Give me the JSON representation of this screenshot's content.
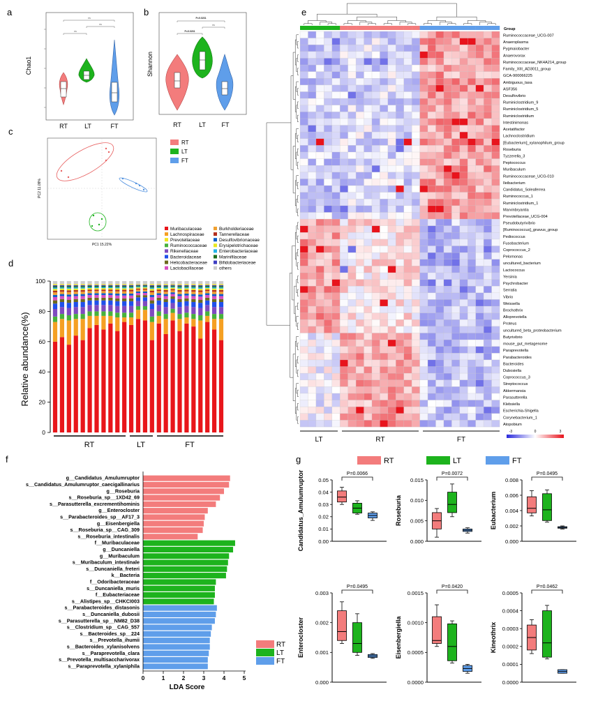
{
  "colors": {
    "RT": "#f37c7c",
    "LT": "#1db31d",
    "FT": "#5f9eea"
  },
  "panels": {
    "a": "a",
    "b": "b",
    "c": "c",
    "d": "d",
    "e": "e",
    "f": "f",
    "g": "g"
  },
  "group_names": [
    "RT",
    "LT",
    "FT"
  ],
  "panel_a": {
    "ylabel": "Chao1",
    "pvals": [
      "ns",
      "ns",
      "ns"
    ]
  },
  "panel_b": {
    "ylabel": "Shannon",
    "pvals": [
      "P=0.0231",
      "ns",
      "P=0.0231"
    ]
  },
  "panel_c": {
    "xlabel": "PC1 15.22%",
    "ylabel": "PC2 11.09%"
  },
  "legend_families": [
    "Muribaculaceae",
    "Burkholderiaceae",
    "Lachnospiraceae",
    "Tannerellaceae",
    "Prevotellaceae",
    "Desulfovibrionaceae",
    "Ruminococcaceae",
    "Erysipelotrichaceae",
    "Rikenellaceae",
    "Enterobacteriaceae",
    "Bacteroidaceae",
    "Marinifilaceae",
    "Helicobacteraceae",
    "Bifidobacteriaceae",
    "Lactobacillaceae",
    "others"
  ],
  "legend_colors": [
    "#e8161b",
    "#f0a030",
    "#f5a023",
    "#b32e1e",
    "#f3e41f",
    "#0c5dc8",
    "#47b23c",
    "#e8e820",
    "#7f4bbf",
    "#23b3e8",
    "#2050ea",
    "#1d6e1d",
    "#6d6a1e",
    "#3d3dc2",
    "#d84ec2",
    "#cccccc"
  ],
  "chart_data": [
    {
      "type": "bar",
      "panel": "d",
      "ylabel": "Relative abundance(%)",
      "ylim": [
        0,
        100
      ],
      "yticks": [
        "0",
        "20",
        "40",
        "60",
        "80",
        "100"
      ],
      "group_labels": [
        "RT",
        "LT",
        "FT"
      ],
      "muribaculaceae": [
        60,
        63,
        58,
        64,
        61,
        69,
        71,
        68,
        72,
        67,
        73,
        71,
        75,
        74,
        61,
        72,
        65,
        74,
        67,
        72,
        70,
        62,
        73,
        68,
        61
      ],
      "lachnospiraceae": [
        13,
        12,
        16,
        11,
        14,
        8,
        6,
        9,
        5,
        9,
        3,
        5,
        6,
        7,
        12,
        5,
        10,
        5,
        8,
        4,
        5,
        12,
        4,
        7,
        14
      ]
    },
    {
      "type": "bar",
      "panel": "f",
      "xlabel": "LDA Score",
      "xlim": [
        0,
        5
      ],
      "xticks": [
        "0",
        "1",
        "2",
        "3",
        "4",
        "5"
      ],
      "legend": [
        "RT",
        "LT",
        "FT"
      ],
      "labels": [
        "g__Candidatus_Amulumruptor",
        "s__Candidatus_Amulumruptor_caecigallinarius",
        "g__Roseburia",
        "s__Roseburia_sp__1XD42_69",
        "s__Parasutterella_excrementihominis",
        "g__Enterocloster",
        "s__Parabacteroides_sp__AF17_3",
        "g__Eisenbergiella",
        "s__Roseburia_sp__CAG_309",
        "s__Roseburia_intestinalis",
        "f__Muribaculaceae",
        "g__Duncaniella",
        "g__Muribaculum",
        "s__Muribaculum_intestinale",
        "s__Duncaniella_freteri",
        "k__Bacteria",
        "f__Odoribacteraceae",
        "s__Duncaniella_muris",
        "f__Eubacteriaceae",
        "s__Alistipes_sp__CHKCI003",
        "s__Parabacteroides_distasonis",
        "s__Duncaniella_dubosii",
        "s__Parasutterella_sp__NM82_D38",
        "s__Clostridium_sp__CAG_557",
        "s__Bacteroides_sp__224",
        "s__Prevotella_ihumii",
        "s__Bacteroides_xylanisolvens",
        "s__Paraprevotella_clara",
        "s__Prevotella_multisaccharivorax",
        "s__Paraprevotella_xylaniphila"
      ],
      "values": [
        4.3,
        4.25,
        4.0,
        3.8,
        3.6,
        3.2,
        3.05,
        3.0,
        2.95,
        2.7,
        4.55,
        4.45,
        4.25,
        4.2,
        4.15,
        4.1,
        3.6,
        3.55,
        3.55,
        3.5,
        3.65,
        3.6,
        3.55,
        3.4,
        3.35,
        3.3,
        3.3,
        3.25,
        3.2,
        3.2
      ],
      "groups": [
        "RT",
        "RT",
        "RT",
        "RT",
        "RT",
        "RT",
        "RT",
        "RT",
        "RT",
        "RT",
        "LT",
        "LT",
        "LT",
        "LT",
        "LT",
        "LT",
        "LT",
        "LT",
        "LT",
        "LT",
        "FT",
        "FT",
        "FT",
        "FT",
        "FT",
        "FT",
        "FT",
        "FT",
        "FT",
        "FT"
      ]
    },
    {
      "type": "heatmap",
      "panel": "e",
      "legend_title": "Group",
      "scale_ticks": [
        "-3",
        "0",
        "3"
      ],
      "group_labels": [
        "LT",
        "RT",
        "FT"
      ],
      "rows": [
        "Ruminococcaceae_UCG-007",
        "Anaeroplasma",
        "Pygmaiobacter",
        "Anaerovorax",
        "Ruminococcaceae_NK4A214_group",
        "Family_XIII_AD3011_group",
        "GCA-900066225",
        "Ambiguous_taxa",
        "ASF356",
        "Desulfovibrio",
        "Ruminiclostridium_9",
        "Ruminiclostridium_5",
        "Ruminiclostridium",
        "Intestinimonas",
        "Acetatifactor",
        "Lachnoclostridium",
        "[Eubacterium]_xylanophilum_group",
        "Roseburia",
        "Tyzzerella_3",
        "Peptococcus",
        "Muribaculum",
        "Ruminococcaceae_UCG-010",
        "Ileibacterium",
        "Candidatus_Soleaferrea",
        "Ruminococcus_1",
        "Ruminiclostridium_1",
        "Marvinbryantia",
        "Prevotellaceae_UCG-004",
        "Pseudobutyrivibrio",
        "[Ruminococcus]_gnavus_group",
        "Pediococcus",
        "Fusobacterium",
        "Coprococcus_2",
        "Pelomonas",
        "uncultured_bacterium",
        "Lactococcus",
        "Yersinia",
        "Psychrobacter",
        "Serratia",
        "Vibrio",
        "Weissella",
        "Brochothrix",
        "Alloprevotella",
        "Proteus",
        "uncultured_beta_proteobacterium",
        "Butyrivibrio",
        "mouse_gut_metagenome",
        "Paraprevotella",
        "Parabacteroides",
        "Bacteroides",
        "Dubosiella",
        "Coprococcus_3",
        "Streptococcus",
        "Akkermansia",
        "Parasutterella",
        "Klebsiella",
        "Escherichia-Shigella",
        "Corynebacterium_1",
        "Atopobium"
      ]
    },
    {
      "type": "box",
      "panel": "g",
      "legend": [
        "RT",
        "LT",
        "FT"
      ],
      "subplots": [
        {
          "ylabel": "Candidatus_Amulumruptor",
          "p": "P=0.0066",
          "ylim": [
            0,
            0.05
          ],
          "yticks": [
            "0.00",
            "0.01",
            "0.02",
            "0.03",
            "0.04",
            "0.05"
          ],
          "boxes": [
            [
              0.03,
              0.032,
              0.036,
              0.041,
              0.044
            ],
            [
              0.022,
              0.023,
              0.027,
              0.031,
              0.033
            ],
            [
              0.017,
              0.019,
              0.021,
              0.023,
              0.024
            ]
          ]
        },
        {
          "ylabel": "Roseburia",
          "p": "P=0.0072",
          "ylim": [
            0,
            0.015
          ],
          "yticks": [
            "0.000",
            "0.005",
            "0.010",
            "0.015"
          ],
          "boxes": [
            [
              0.001,
              0.003,
              0.005,
              0.007,
              0.008
            ],
            [
              0.006,
              0.007,
              0.009,
              0.012,
              0.014
            ],
            [
              0.002,
              0.0024,
              0.0027,
              0.003,
              0.0033
            ]
          ]
        },
        {
          "ylabel": "Eubacterium",
          "p": "P=0.0495",
          "ylim": [
            0,
            0.008
          ],
          "yticks": [
            "0.000",
            "0.002",
            "0.004",
            "0.006",
            "0.008"
          ],
          "boxes": [
            [
              0.0033,
              0.0037,
              0.0043,
              0.0058,
              0.0066
            ],
            [
              0.0025,
              0.0027,
              0.0041,
              0.0062,
              0.0067
            ],
            [
              0.0016,
              0.0017,
              0.0018,
              0.0019,
              0.002
            ]
          ]
        },
        {
          "ylabel": "Enterocloster",
          "p": "P=0.0495",
          "ylim": [
            0,
            0.003
          ],
          "yticks": [
            "0.000",
            "0.001",
            "0.002",
            "0.003"
          ],
          "boxes": [
            [
              0.0013,
              0.0014,
              0.0017,
              0.0024,
              0.0027
            ],
            [
              0.0009,
              0.001,
              0.0013,
              0.002,
              0.0023
            ],
            [
              0.0008,
              0.00083,
              0.00088,
              0.00093,
              0.00096
            ]
          ]
        },
        {
          "ylabel": "Eisenbergiella",
          "p": "P=0.0420",
          "ylim": [
            0,
            0.0015
          ],
          "yticks": [
            "0.0000",
            "0.0005",
            "0.0010",
            "0.0015"
          ],
          "boxes": [
            [
              0.0006,
              0.00065,
              0.0007,
              0.0011,
              0.0013
            ],
            [
              0.00032,
              0.00036,
              0.0006,
              0.00098,
              0.00103
            ],
            [
              0.00015,
              0.00018,
              0.00023,
              0.00028,
              0.0003
            ]
          ]
        },
        {
          "ylabel": "Kineothrix",
          "p": "P=0.0462",
          "ylim": [
            0,
            0.0005
          ],
          "yticks": [
            "0.0000",
            "0.0001",
            "0.0002",
            "0.0003",
            "0.0004",
            "0.0005"
          ],
          "boxes": [
            [
              0.00016,
              0.00018,
              0.00025,
              0.00032,
              0.00035
            ],
            [
              0.00013,
              0.00014,
              0.00022,
              0.0004,
              0.00043
            ],
            [
              5e-05,
              5e-05,
              6e-05,
              7e-05,
              7e-05
            ]
          ]
        }
      ]
    }
  ]
}
